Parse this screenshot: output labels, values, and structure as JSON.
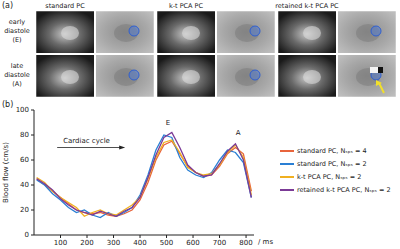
{
  "panel_a": {
    "panel_label": "(a)",
    "columns": [
      "standard PC",
      "k-t PCA PC",
      "retained k-t PCA PC"
    ],
    "rows": [
      {
        "lines": [
          "early",
          "diastole",
          "(E)"
        ]
      },
      {
        "lines": [
          "late",
          "diastole",
          "(A)"
        ]
      }
    ]
  },
  "chart_data": {
    "panel_label": "(b)",
    "type": "line",
    "x": [
      10,
      40,
      70,
      100,
      130,
      160,
      190,
      220,
      250,
      280,
      310,
      340,
      370,
      400,
      430,
      460,
      490,
      520,
      550,
      580,
      610,
      640,
      670,
      700,
      730,
      760,
      790,
      820
    ],
    "series": [
      {
        "name": "standard PC, Nₛₚₛ = 4",
        "color": "#e8643c",
        "values": [
          45,
          40,
          35,
          30,
          25,
          20,
          18,
          17,
          18,
          16,
          15,
          17,
          20,
          28,
          42,
          60,
          72,
          75,
          65,
          55,
          50,
          47,
          48,
          55,
          65,
          70,
          65,
          35
        ]
      },
      {
        "name": "standard PC, Nₛₚₛ = 2",
        "color": "#2a7fd4",
        "values": [
          44,
          40,
          33,
          28,
          22,
          18,
          20,
          16,
          14,
          18,
          15,
          18,
          22,
          32,
          48,
          68,
          80,
          78,
          62,
          52,
          48,
          46,
          50,
          60,
          68,
          66,
          58,
          30
        ]
      },
      {
        "name": "k-t PCA PC, Nₛₚₛ = 2",
        "color": "#f0b020",
        "values": [
          46,
          42,
          35,
          30,
          26,
          22,
          15,
          18,
          20,
          17,
          16,
          20,
          24,
          30,
          45,
          62,
          74,
          76,
          66,
          54,
          50,
          48,
          49,
          56,
          66,
          72,
          62,
          32
        ]
      },
      {
        "name": "retained k-t PCA PC, Nₛₚₛ = 2",
        "color": "#7b3a96",
        "values": [
          45,
          41,
          36,
          29,
          24,
          20,
          18,
          16,
          19,
          17,
          15,
          19,
          22,
          30,
          46,
          64,
          78,
          82,
          70,
          56,
          50,
          47,
          48,
          57,
          67,
          73,
          60,
          30
        ]
      }
    ],
    "xlim": [
      0,
      830
    ],
    "xticks": [
      100,
      200,
      300,
      400,
      500,
      600,
      700,
      800
    ],
    "ylim": [
      0,
      100
    ],
    "yticks": [
      0,
      20,
      40,
      60,
      80,
      100
    ],
    "x_label": "/ ms",
    "y_label": "Blood flow (cm/s)",
    "annotations": [
      {
        "text": "E",
        "x": 505,
        "y": 88
      },
      {
        "text": "A",
        "x": 770,
        "y": 80
      },
      {
        "text": "Cardiac cycle",
        "x": 110,
        "y": 74,
        "marker": "arrow"
      }
    ],
    "legend": "right",
    "grid": false
  }
}
